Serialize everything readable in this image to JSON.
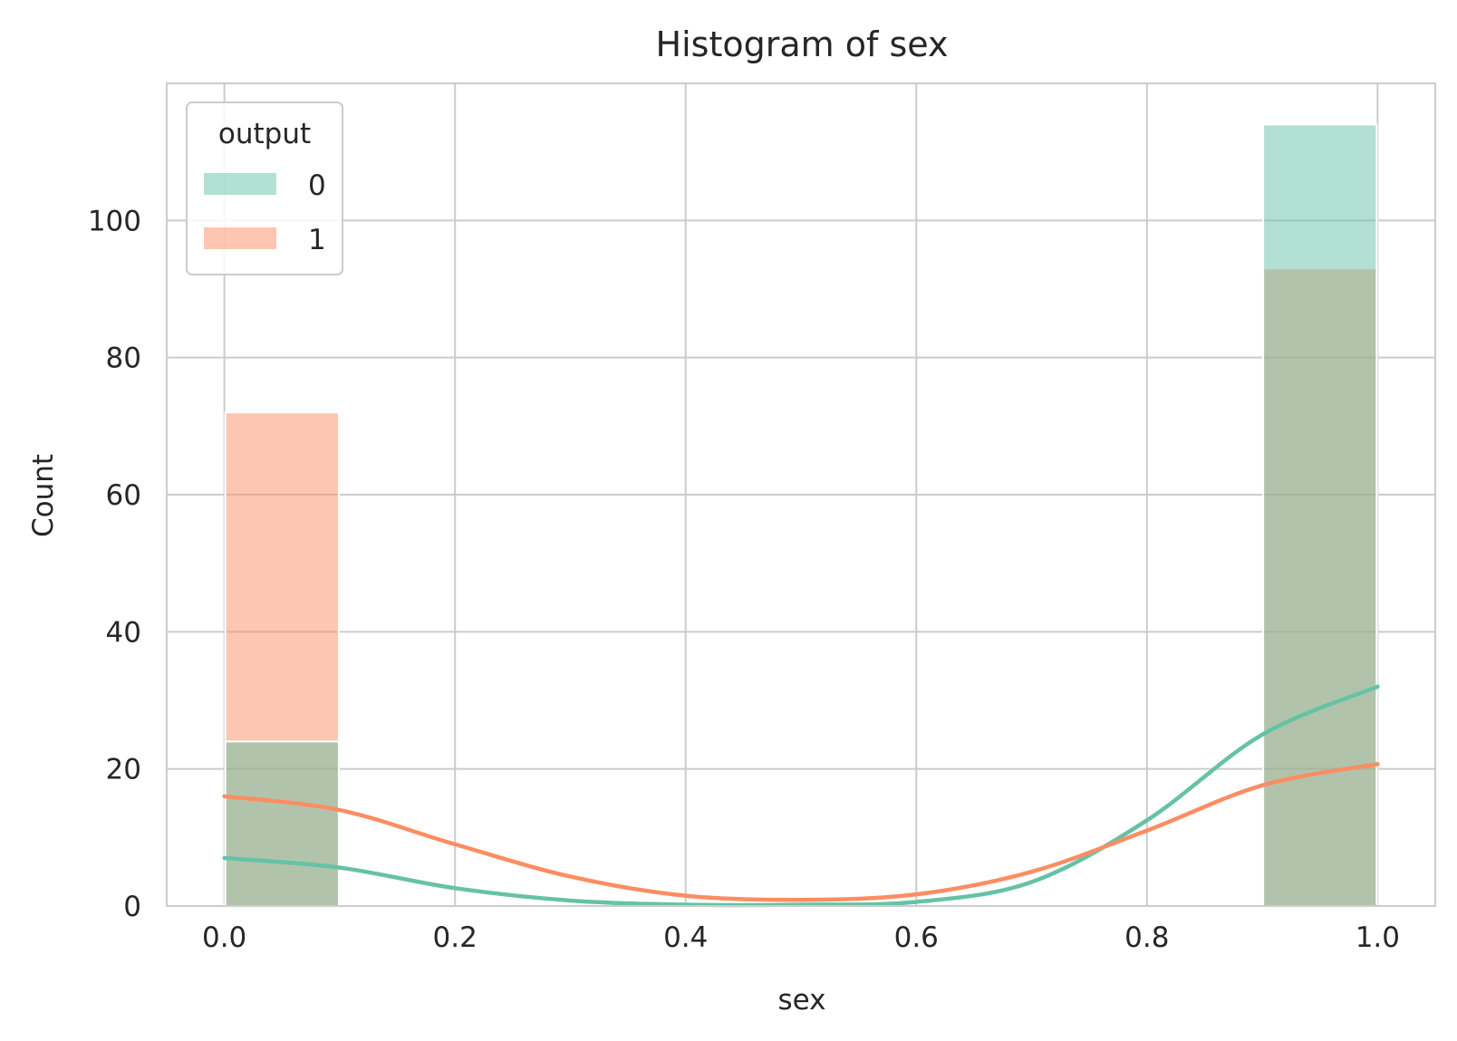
{
  "chart_data": {
    "type": "histogram",
    "title": "Histogram of sex",
    "xlabel": "sex",
    "ylabel": "Count",
    "xlim": [
      -0.05,
      1.05
    ],
    "ylim": [
      0,
      120
    ],
    "x_ticks": [
      "0.0",
      "0.2",
      "0.4",
      "0.6",
      "0.8",
      "1.0"
    ],
    "y_ticks": [
      "0",
      "20",
      "40",
      "60",
      "80",
      "100"
    ],
    "grid": true,
    "legend": {
      "title": "output",
      "placement": "top-left",
      "entries": [
        "0",
        "1"
      ]
    },
    "bins": [
      {
        "x0": 0.0,
        "x1": 0.1,
        "count_0": 24,
        "count_1": 72
      },
      {
        "x0": 0.9,
        "x1": 1.0,
        "count_0": 114,
        "count_1": 93
      }
    ],
    "series": [
      {
        "name": "0",
        "color": "#66c2a5",
        "kde": [
          [
            0.0,
            7.0
          ],
          [
            0.1,
            5.6
          ],
          [
            0.2,
            2.6
          ],
          [
            0.3,
            0.8
          ],
          [
            0.4,
            0.2
          ],
          [
            0.5,
            0.2
          ],
          [
            0.6,
            0.6
          ],
          [
            0.7,
            3.5
          ],
          [
            0.8,
            12.5
          ],
          [
            0.9,
            25.0
          ],
          [
            1.0,
            32.0
          ]
        ]
      },
      {
        "name": "1",
        "color": "#fc8d62",
        "kde": [
          [
            0.0,
            16.0
          ],
          [
            0.1,
            14.0
          ],
          [
            0.2,
            9.0
          ],
          [
            0.3,
            4.3
          ],
          [
            0.4,
            1.5
          ],
          [
            0.5,
            0.9
          ],
          [
            0.6,
            1.7
          ],
          [
            0.7,
            5.0
          ],
          [
            0.8,
            11.0
          ],
          [
            0.9,
            17.6
          ],
          [
            1.0,
            20.7
          ]
        ]
      }
    ]
  }
}
